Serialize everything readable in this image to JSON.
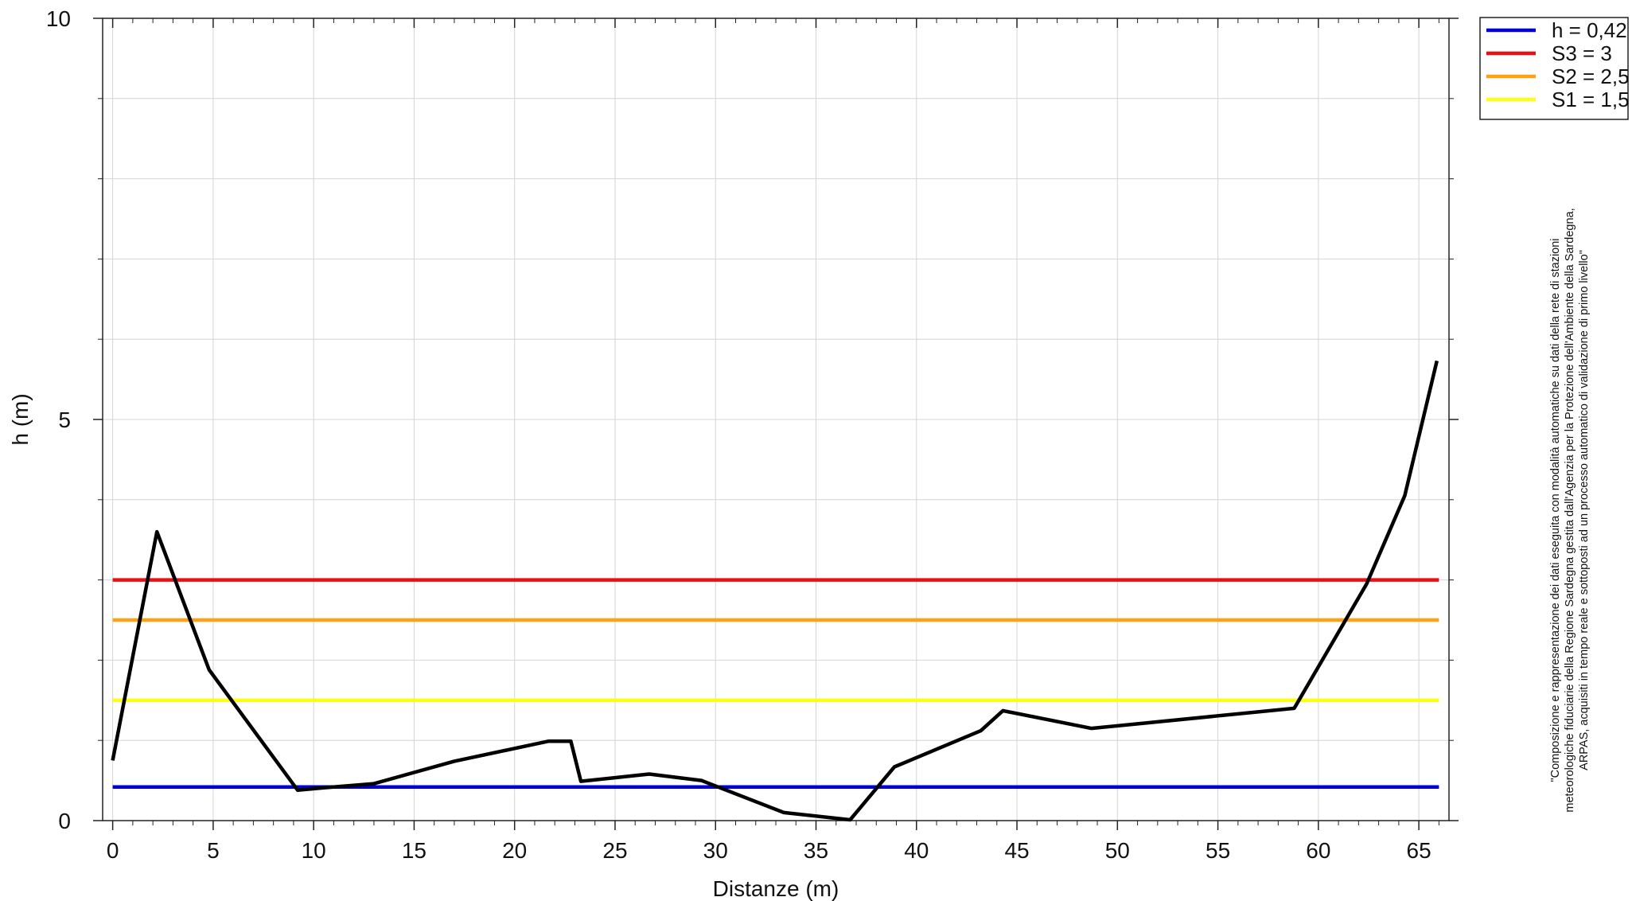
{
  "chart_data": {
    "type": "line",
    "xlabel": "Distanze (m)",
    "ylabel": "h (m)",
    "xlim": [
      -0.5,
      66.5
    ],
    "ylim": [
      0,
      10
    ],
    "x_ticks": [
      0,
      5,
      10,
      15,
      20,
      25,
      30,
      35,
      40,
      45,
      50,
      55,
      60,
      65
    ],
    "y_ticks": [
      0,
      5,
      10
    ],
    "grid": true,
    "legend_position": "top-right, outside plot",
    "series": [
      {
        "name": "h = 0,42",
        "color": "#0000d4",
        "x": [
          0,
          66
        ],
        "y": [
          0.42,
          0.42
        ]
      },
      {
        "name": "S3 = 3",
        "color": "#e81010",
        "x": [
          0,
          66
        ],
        "y": [
          3,
          3
        ]
      },
      {
        "name": "S2 = 2,5",
        "color": "#ffa114",
        "x": [
          0,
          66
        ],
        "y": [
          2.5,
          2.5
        ]
      },
      {
        "name": "S1 = 1,5",
        "color": "#ffff14",
        "x": [
          0,
          66
        ],
        "y": [
          1.5,
          1.5
        ]
      }
    ],
    "profile": {
      "color": "#000000",
      "x": [
        0,
        2.2,
        4.8,
        9.2,
        10.5,
        13,
        17,
        21.7,
        22.8,
        23.3,
        26.7,
        29.3,
        33.4,
        36.7,
        38.9,
        43.2,
        44.3,
        48.7,
        58.8,
        62.4,
        64.3,
        65.9
      ],
      "y": [
        0.75,
        3.6,
        1.88,
        0.38,
        0.41,
        0.46,
        0.74,
        0.99,
        0.99,
        0.49,
        0.58,
        0.5,
        0.1,
        0.01,
        0.67,
        1.12,
        1.37,
        1.15,
        1.4,
        2.95,
        4.05,
        5.73
      ]
    }
  },
  "note": {
    "lines": [
      "\"Composizione e rappresentazione dei dati eseguita con modalità automatiche su dati della rete di stazioni",
      "meteorologiche fiduciarie della Regione Sardegna gestita dall'Agenzia per la Protezione dell'Ambiente della Sardegna,",
      "ARPAS, acquisiti in tempo reale e sottoposti ad un processo automatico di validazione di primo livello\""
    ]
  }
}
